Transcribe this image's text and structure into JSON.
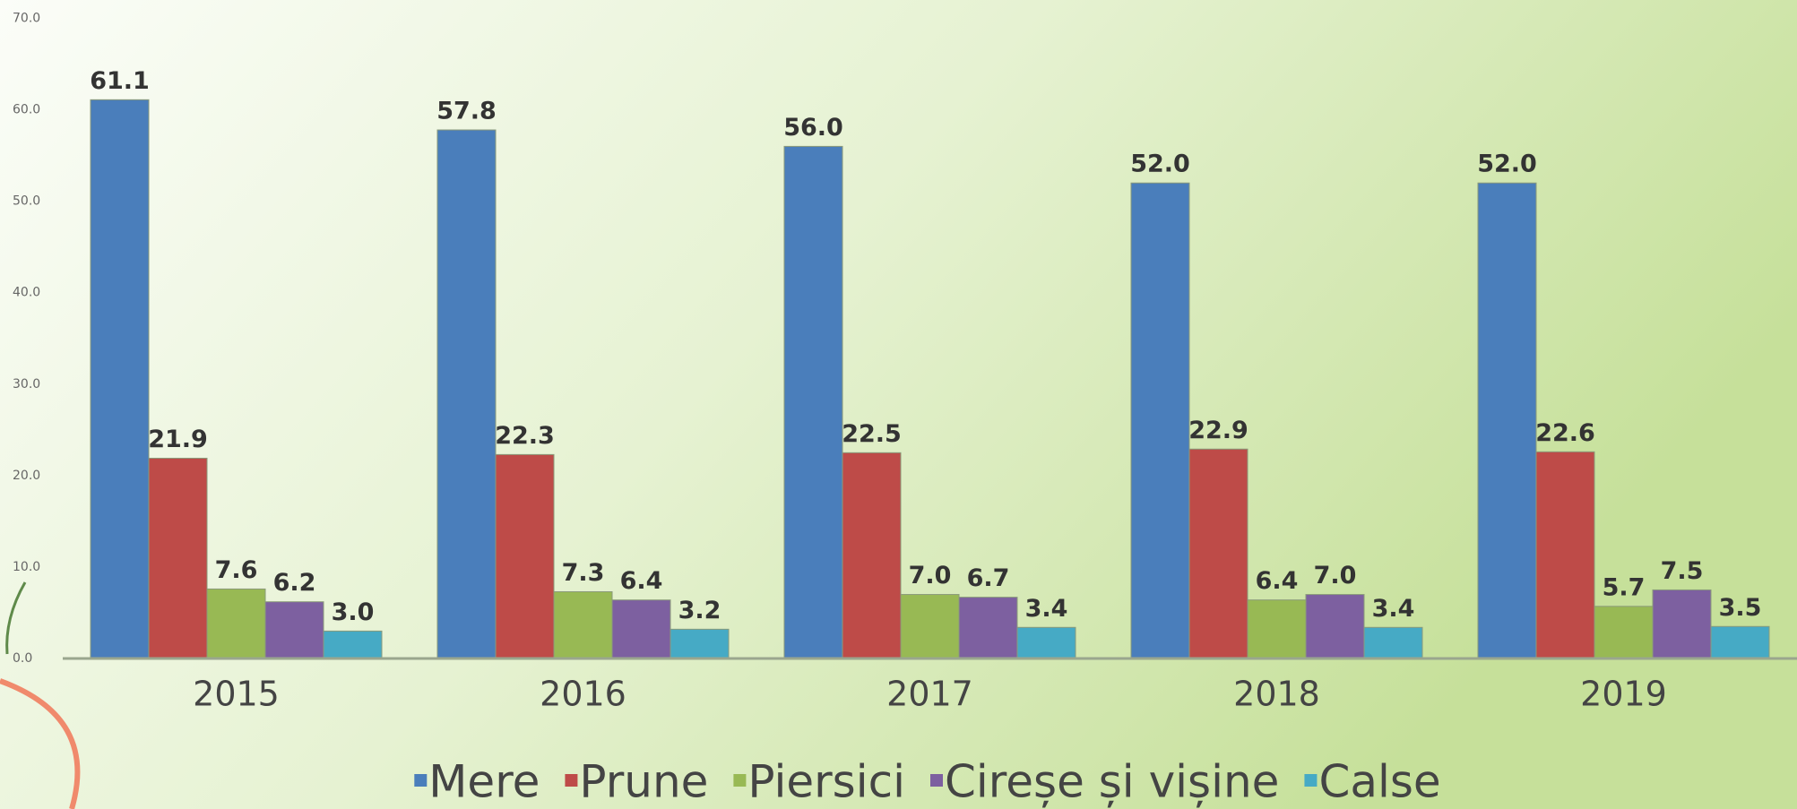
{
  "chart_data": {
    "type": "bar",
    "categories": [
      "2015",
      "2016",
      "2017",
      "2018",
      "2019"
    ],
    "series": [
      {
        "name": "Mere",
        "color": "#4a7ebb",
        "values": [
          61.1,
          57.8,
          56.0,
          52.0,
          52.0
        ],
        "value_labels": [
          "61.1",
          "57.8",
          "56.0",
          "52.0",
          "52.0"
        ]
      },
      {
        "name": "Prune",
        "color": "#be4b48",
        "values": [
          21.9,
          22.3,
          22.5,
          22.9,
          22.6
        ],
        "value_labels": [
          "21.9",
          "22.3",
          "22.5",
          "22.9",
          "22.6"
        ]
      },
      {
        "name": "Piersici",
        "color": "#98b954",
        "values": [
          7.6,
          7.3,
          7.0,
          6.4,
          5.7
        ],
        "value_labels": [
          "7.6",
          "7.3",
          "7.0",
          "6.4",
          "5.7"
        ]
      },
      {
        "name": "Cireșe și vișine",
        "color": "#7d60a0",
        "values": [
          6.2,
          6.4,
          6.7,
          7.0,
          7.5
        ],
        "value_labels": [
          "6.2",
          "6.4",
          "6.7",
          "7.0",
          "7.5"
        ]
      },
      {
        "name": "Calse",
        "color": "#46aac5",
        "values": [
          3.0,
          3.2,
          3.4,
          3.4,
          3.5
        ],
        "value_labels": [
          "3.0",
          "3.2",
          "3.4",
          "3.4",
          "3.5"
        ]
      }
    ],
    "ylim": [
      0,
      70
    ],
    "yticks": [
      {
        "value": 0,
        "label": "0.0"
      },
      {
        "value": 10,
        "label": "10.0"
      },
      {
        "value": 20,
        "label": "20.0"
      },
      {
        "value": 30,
        "label": "30.0"
      },
      {
        "value": 40,
        "label": "40.0"
      },
      {
        "value": 50,
        "label": "50.0"
      },
      {
        "value": 60,
        "label": "60.0"
      },
      {
        "value": 70,
        "label": "70.0"
      }
    ],
    "grid": false,
    "legend": "bottom"
  }
}
